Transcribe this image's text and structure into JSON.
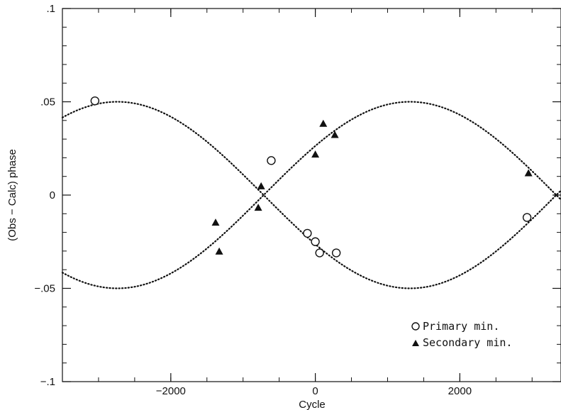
{
  "chart_data": {
    "type": "scatter",
    "xlabel": "Cycle",
    "ylabel": "(Obs − Calc) phase",
    "xlim": [
      -3500,
      3400
    ],
    "ylim": [
      -0.1,
      0.1
    ],
    "x_ticks": [
      {
        "value": -2000,
        "label": "−2000"
      },
      {
        "value": 0,
        "label": "0"
      },
      {
        "value": 2000,
        "label": "2000"
      }
    ],
    "x_minor_step": 500,
    "y_ticks": [
      {
        "value": 0.1,
        "label": ".1"
      },
      {
        "value": 0.05,
        "label": ".05"
      },
      {
        "value": 0,
        "label": "0"
      },
      {
        "value": -0.05,
        "label": "−.05"
      },
      {
        "value": -0.1,
        "label": "−.1"
      }
    ],
    "y_minor_step": 0.01,
    "grid": false,
    "legend_position": "bottom-right",
    "series": [
      {
        "name": "Primary min.",
        "marker": "open-circle",
        "points": [
          {
            "x": -3050,
            "y": 0.0505
          },
          {
            "x": -610,
            "y": 0.0185
          },
          {
            "x": -110,
            "y": -0.0205
          },
          {
            "x": 0,
            "y": -0.025
          },
          {
            "x": 60,
            "y": -0.031
          },
          {
            "x": 290,
            "y": -0.031
          },
          {
            "x": 2930,
            "y": -0.012
          }
        ]
      },
      {
        "name": "Secondary min.",
        "marker": "filled-triangle",
        "points": [
          {
            "x": -1380,
            "y": -0.0145
          },
          {
            "x": -1330,
            "y": -0.03
          },
          {
            "x": -790,
            "y": -0.0065
          },
          {
            "x": -750,
            "y": 0.005
          },
          {
            "x": 0,
            "y": 0.022
          },
          {
            "x": 110,
            "y": 0.0385
          },
          {
            "x": 270,
            "y": 0.0325
          },
          {
            "x": 2950,
            "y": 0.012
          }
        ]
      }
    ],
    "model_curves": [
      {
        "amplitude": 0.05,
        "period": 8100,
        "peak_at": -2740,
        "style": "dotted"
      },
      {
        "amplitude": -0.05,
        "period": 8100,
        "peak_at": -2740,
        "style": "dotted"
      }
    ]
  }
}
